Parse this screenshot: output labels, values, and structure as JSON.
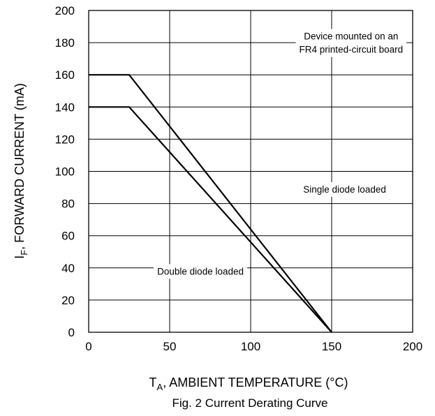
{
  "chart_data": {
    "type": "line",
    "title": "",
    "caption": "Fig. 2  Current Derating Curve",
    "xlabel": {
      "prefix": "T",
      "subscript": "A",
      "suffix": ", AMBIENT TEMPERATURE (°C)"
    },
    "ylabel": {
      "prefix": "I",
      "subscript": "F",
      "suffix": ", FORWARD CURRENT (mA)"
    },
    "xlim": [
      0,
      200
    ],
    "ylim": [
      0,
      200
    ],
    "x_ticks": [
      0,
      50,
      100,
      150,
      200
    ],
    "x_tick_labels": [
      "0",
      "50",
      "100",
      "150",
      "200"
    ],
    "y_ticks": [
      0,
      20,
      40,
      60,
      80,
      100,
      120,
      140,
      160,
      180,
      200
    ],
    "y_tick_labels": [
      "0",
      "20",
      "40",
      "60",
      "80",
      "100",
      "120",
      "140",
      "160",
      "180",
      "200"
    ],
    "grid": true,
    "series": [
      {
        "name": "Single diode loaded",
        "x": [
          0,
          25,
          150
        ],
        "y": [
          160,
          160,
          0
        ]
      },
      {
        "name": "Double diode loaded",
        "x": [
          0,
          25,
          150
        ],
        "y": [
          140,
          140,
          0
        ]
      }
    ],
    "annotations": [
      {
        "lines": [
          "Device mounted on an",
          "FR4 printed-circuit board"
        ],
        "x": 162,
        "y": 180
      },
      {
        "lines": [
          "Single diode loaded"
        ],
        "x": 158,
        "y": 89
      },
      {
        "lines": [
          "Double diode loaded"
        ],
        "x": 69,
        "y": 38
      }
    ]
  }
}
